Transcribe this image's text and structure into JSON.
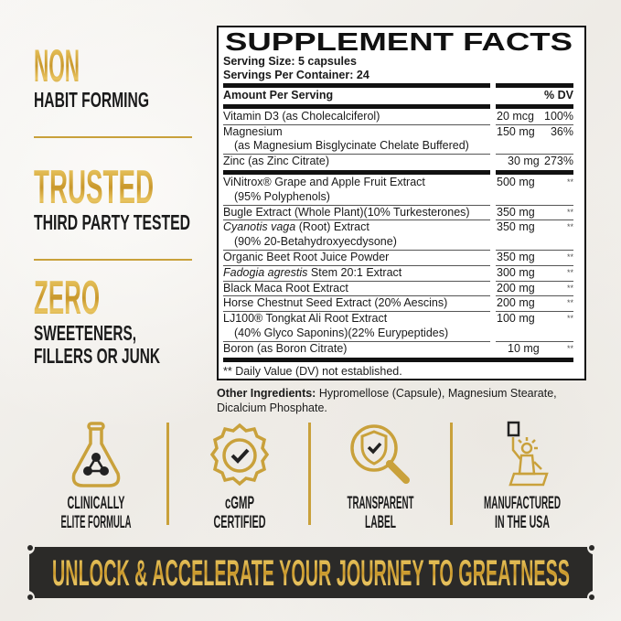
{
  "claims": [
    {
      "headline": "NON",
      "sub": [
        "HABIT FORMING"
      ]
    },
    {
      "headline": "TRUSTED",
      "sub": [
        "THIRD PARTY TESTED"
      ]
    },
    {
      "headline": "ZERO",
      "sub": [
        "SWEETENERS,",
        "FILLERS OR JUNK"
      ]
    }
  ],
  "facts": {
    "title": "SUPPLEMENT FACTS",
    "serving_size": "Serving Size: 5 capsules",
    "servings_per_container": "Servings Per Container: 24",
    "header_left": "Amount Per Serving",
    "header_right": "% DV",
    "rows": [
      {
        "italic": "",
        "name": "Vitamin D3 (as Cholecalciferol)",
        "sub": "",
        "amount": "20 mcg",
        "dv": "100%"
      },
      {
        "italic": "",
        "name": "Magnesium",
        "sub": "(as Magnesium Bisglycinate Chelate Buffered)",
        "amount": "150 mg",
        "dv": "36%"
      },
      {
        "italic": "",
        "name": "Zinc (as Zinc Citrate)",
        "sub": "",
        "amount": "30 mg",
        "dv": "273%",
        "thick_after": true
      },
      {
        "italic": "",
        "name": "ViNitrox® Grape and Apple Fruit Extract",
        "sub": "(95% Polyphenols)",
        "amount": "500 mg",
        "dv": "**"
      },
      {
        "italic": "",
        "name": "Bugle Extract (Whole Plant)(10% Turkesterones)",
        "sub": "",
        "amount": "350 mg",
        "dv": "**"
      },
      {
        "italic": "Cyanotis vaga",
        "name": " (Root) Extract",
        "sub": "(90% 20-Betahydroxyecdysone)",
        "amount": "350 mg",
        "dv": "**"
      },
      {
        "italic": "",
        "name": "Organic Beet Root Juice Powder",
        "sub": "",
        "amount": "350 mg",
        "dv": "**"
      },
      {
        "italic": "Fadogia agrestis",
        "name": " Stem 20:1 Extract",
        "sub": "",
        "amount": "300 mg",
        "dv": "**"
      },
      {
        "italic": "",
        "name": "Black Maca Root Extract",
        "sub": "",
        "amount": "200 mg",
        "dv": "**"
      },
      {
        "italic": "",
        "name": "Horse Chestnut Seed Extract (20% Aescins)",
        "sub": "",
        "amount": "200 mg",
        "dv": "**"
      },
      {
        "italic": "",
        "name": "LJ100® Tongkat Ali Root Extract",
        "sub": "(40% Glyco Saponins)(22% Eurypeptides)",
        "amount": "100 mg",
        "dv": "**"
      },
      {
        "italic": "",
        "name": "Boron (as Boron Citrate)",
        "sub": "",
        "amount": "10 mg",
        "dv": "**"
      }
    ],
    "footnote": "** Daily Value (DV) not established."
  },
  "other_ingredients": {
    "label": "Other Ingredients:",
    "text": " Hypromellose (Capsule), Magnesium Stearate, Dicalcium Phosphate."
  },
  "badges": [
    {
      "icon": "flask-icon",
      "lines": [
        "CLINICALLY",
        "ELITE FORMULA"
      ]
    },
    {
      "icon": "seal-check-icon",
      "lines": [
        "cGMP",
        "CERTIFIED"
      ]
    },
    {
      "icon": "magnifier-shield-icon",
      "lines": [
        "TRANSPARENT",
        "LABEL"
      ]
    },
    {
      "icon": "statue-of-liberty-icon",
      "lines": [
        "MANUFACTURED",
        "IN THE USA"
      ]
    }
  ],
  "banner": "UNLOCK & ACCELERATE YOUR JOURNEY TO GREATNESS",
  "colors": {
    "gold": "#c9a13b",
    "dark": "#2b2a28",
    "text": "#1a1a1a"
  }
}
